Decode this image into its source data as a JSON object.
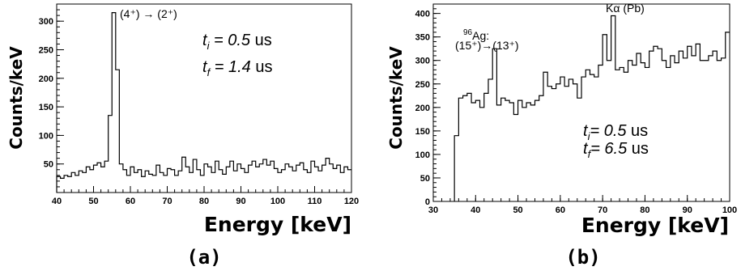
{
  "chart_data": [
    {
      "type": "histogram",
      "panel_label": "(a)",
      "xlabel": "Energy [keV]",
      "ylabel": "Counts/keV",
      "xlim": [
        40,
        120
      ],
      "ylim": [
        0,
        330
      ],
      "xticks": [
        40,
        50,
        60,
        70,
        80,
        90,
        100,
        110,
        120
      ],
      "yticks": [
        50,
        100,
        150,
        200,
        250,
        300
      ],
      "grid": false,
      "annotations": {
        "transition": "(4⁺) → (2⁺)",
        "ti_label": "t",
        "ti_sub": "i",
        "ti_value": " = 0.5",
        "ti_unit": " us",
        "tf_label": "t",
        "tf_sub": "f",
        "tf_value": " = 1.4",
        "tf_unit": " us"
      },
      "bin_start": 40,
      "bin_width": 1,
      "values": [
        28,
        25,
        30,
        28,
        35,
        30,
        38,
        35,
        45,
        40,
        48,
        52,
        45,
        55,
        135,
        315,
        215,
        50,
        40,
        30,
        45,
        35,
        40,
        28,
        38,
        32,
        30,
        48,
        35,
        30,
        42,
        40,
        30,
        38,
        62,
        45,
        35,
        58,
        40,
        30,
        50,
        45,
        35,
        55,
        40,
        32,
        45,
        55,
        38,
        50,
        42,
        35,
        48,
        55,
        45,
        50,
        58,
        48,
        55,
        42,
        35,
        40,
        50,
        45,
        38,
        48,
        52,
        40,
        35,
        55,
        45,
        38,
        48,
        60,
        50,
        42,
        48,
        35,
        45,
        40
      ]
    },
    {
      "type": "histogram",
      "panel_label": "(b)",
      "xlabel": "Energy [keV]",
      "ylabel": "Counts/keV",
      "xlim": [
        30,
        100
      ],
      "ylim": [
        0,
        420
      ],
      "xticks": [
        30,
        40,
        50,
        60,
        70,
        80,
        90,
        100
      ],
      "yticks": [
        0,
        50,
        100,
        150,
        200,
        250,
        300,
        350,
        400
      ],
      "grid": false,
      "annotations": {
        "ag_mass": "96",
        "ag_symbol": "Ag:",
        "transition": "(15⁺)→(13⁺)",
        "kalpha": "Kα (Pb)",
        "ti_label": "t",
        "ti_sub": "i",
        "ti_value": "= 0.5",
        "ti_unit": "  us",
        "tf_label": "t",
        "tf_sub": "f",
        "tf_value": "= 6.5",
        "tf_unit": "  us"
      },
      "bin_start": 35,
      "bin_width": 1,
      "values": [
        140,
        220,
        225,
        230,
        210,
        215,
        200,
        230,
        260,
        325,
        205,
        220,
        215,
        210,
        185,
        215,
        200,
        210,
        205,
        215,
        225,
        275,
        245,
        240,
        250,
        265,
        245,
        260,
        250,
        220,
        265,
        280,
        270,
        265,
        290,
        355,
        300,
        395,
        280,
        285,
        275,
        300,
        290,
        315,
        295,
        285,
        320,
        330,
        325,
        300,
        285,
        310,
        295,
        320,
        305,
        330,
        310,
        335,
        300,
        300,
        310,
        320,
        300,
        305,
        360
      ]
    }
  ]
}
